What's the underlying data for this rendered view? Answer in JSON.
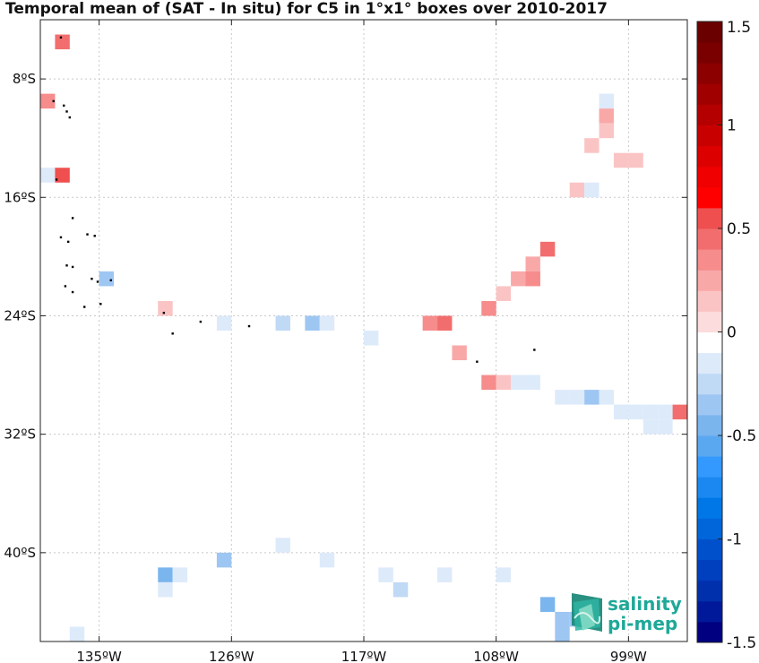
{
  "chart_data": {
    "type": "heatmap",
    "title": "Temporal mean of (SAT - In situ) for C5 in 1°x1° boxes over 2010-2017",
    "x_ticks": [
      {
        "lon": -135,
        "label": "135ºW"
      },
      {
        "lon": -126,
        "label": "126ºW"
      },
      {
        "lon": -117,
        "label": "117ºW"
      },
      {
        "lon": -108,
        "label": "108ºW"
      },
      {
        "lon": -99,
        "label": "99ºW"
      }
    ],
    "y_ticks": [
      {
        "lat": -8,
        "label": "8ºS"
      },
      {
        "lat": -16,
        "label": "16ºS"
      },
      {
        "lat": -24,
        "label": "24ºS"
      },
      {
        "lat": -32,
        "label": "32ºS"
      },
      {
        "lat": -40,
        "label": "40ºS"
      }
    ],
    "xlim": [
      -139,
      -95
    ],
    "ylim": [
      -46,
      -4
    ],
    "grid": true,
    "colorbar": {
      "range": [
        -1.5,
        1.5
      ],
      "ticks": [
        {
          "value": 1.5,
          "label": "1.5"
        },
        {
          "value": 1,
          "label": "1"
        },
        {
          "value": 0.5,
          "label": "0.5"
        },
        {
          "value": 0,
          "label": "0"
        },
        {
          "value": -0.5,
          "label": "-0.5"
        },
        {
          "value": -1,
          "label": "-1"
        },
        {
          "value": -1.5,
          "label": "-1.5"
        }
      ],
      "colors": [
        "#000080",
        "#00199a",
        "#0030ac",
        "#003fbe",
        "#0050cc",
        "#0066d9",
        "#0077e6",
        "#1a88f0",
        "#3399ff",
        "#5aa8f0",
        "#7ab5ee",
        "#9ec6f2",
        "#c0d9f5",
        "#ddeafa",
        "#ffffff",
        "#fcdcdc",
        "#fbc4c4",
        "#f9a8a8",
        "#f68c8c",
        "#f26e6e",
        "#ef4f4f",
        "#ff0000",
        "#f00000",
        "#dc0000",
        "#c80000",
        "#b40000",
        "#a00000",
        "#8c0000",
        "#7a0000",
        "#6b0000"
      ]
    },
    "cells": [
      {
        "lon": -137.5,
        "lat": -5.5,
        "value": 0.45
      },
      {
        "lon": -138.5,
        "lat": -9.5,
        "value": 0.3
      },
      {
        "lon": -100.5,
        "lat": -9.5,
        "value": -0.1
      },
      {
        "lon": -100.5,
        "lat": -10.5,
        "value": 0.2
      },
      {
        "lon": -100.5,
        "lat": -11.5,
        "value": 0.1
      },
      {
        "lon": -101.5,
        "lat": -12.5,
        "value": 0.15
      },
      {
        "lon": -99.5,
        "lat": -13.5,
        "value": 0.1
      },
      {
        "lon": -98.5,
        "lat": -13.5,
        "value": 0.1
      },
      {
        "lon": -138.5,
        "lat": -14.5,
        "value": -0.15
      },
      {
        "lon": -137.5,
        "lat": -14.5,
        "value": 0.55
      },
      {
        "lon": -102.5,
        "lat": -15.5,
        "value": 0.15
      },
      {
        "lon": -101.5,
        "lat": -15.5,
        "value": -0.1
      },
      {
        "lon": -104.5,
        "lat": -19.5,
        "value": 0.4
      },
      {
        "lon": -105.5,
        "lat": -20.5,
        "value": 0.25
      },
      {
        "lon": -106.5,
        "lat": -21.5,
        "value": 0.2
      },
      {
        "lon": -105.5,
        "lat": -21.5,
        "value": 0.3
      },
      {
        "lon": -107.5,
        "lat": -22.5,
        "value": 0.15
      },
      {
        "lon": -134.5,
        "lat": -21.5,
        "value": -0.3
      },
      {
        "lon": -108.5,
        "lat": -23.5,
        "value": 0.35
      },
      {
        "lon": -130.5,
        "lat": -23.5,
        "value": 0.15
      },
      {
        "lon": -126.5,
        "lat": -24.5,
        "value": -0.1
      },
      {
        "lon": -122.5,
        "lat": -24.5,
        "value": -0.25
      },
      {
        "lon": -120.5,
        "lat": -24.5,
        "value": -0.3
      },
      {
        "lon": -119.5,
        "lat": -24.5,
        "value": -0.1
      },
      {
        "lon": -112.5,
        "lat": -24.5,
        "value": 0.3
      },
      {
        "lon": -111.5,
        "lat": -24.5,
        "value": 0.45
      },
      {
        "lon": -116.5,
        "lat": -25.5,
        "value": -0.1
      },
      {
        "lon": -110.5,
        "lat": -26.5,
        "value": 0.2
      },
      {
        "lon": -108.5,
        "lat": -28.5,
        "value": 0.35
      },
      {
        "lon": -107.5,
        "lat": -28.5,
        "value": 0.15
      },
      {
        "lon": -106.5,
        "lat": -28.5,
        "value": -0.2
      },
      {
        "lon": -105.5,
        "lat": -28.5,
        "value": -0.2
      },
      {
        "lon": -103.5,
        "lat": -29.5,
        "value": -0.1
      },
      {
        "lon": -102.5,
        "lat": -29.5,
        "value": -0.2
      },
      {
        "lon": -101.5,
        "lat": -29.5,
        "value": -0.3
      },
      {
        "lon": -100.5,
        "lat": -29.5,
        "value": -0.15
      },
      {
        "lon": -99.5,
        "lat": -30.5,
        "value": -0.2
      },
      {
        "lon": -98.5,
        "lat": -30.5,
        "value": -0.2
      },
      {
        "lon": -97.5,
        "lat": -30.5,
        "value": -0.1
      },
      {
        "lon": -96.5,
        "lat": -30.5,
        "value": -0.2
      },
      {
        "lon": -95.5,
        "lat": -30.5,
        "value": 0.45
      },
      {
        "lon": -97.5,
        "lat": -31.5,
        "value": -0.2
      },
      {
        "lon": -96.5,
        "lat": -31.5,
        "value": -0.2
      },
      {
        "lon": -122.5,
        "lat": -39.5,
        "value": -0.1
      },
      {
        "lon": -126.5,
        "lat": -40.5,
        "value": -0.4
      },
      {
        "lon": -119.5,
        "lat": -40.5,
        "value": -0.1
      },
      {
        "lon": -130.5,
        "lat": -41.5,
        "value": -0.45
      },
      {
        "lon": -129.5,
        "lat": -41.5,
        "value": -0.2
      },
      {
        "lon": -115.5,
        "lat": -41.5,
        "value": -0.1
      },
      {
        "lon": -111.5,
        "lat": -41.5,
        "value": -0.1
      },
      {
        "lon": -107.5,
        "lat": -41.5,
        "value": -0.1
      },
      {
        "lon": -130.5,
        "lat": -42.5,
        "value": -0.1
      },
      {
        "lon": -114.5,
        "lat": -42.5,
        "value": -0.25
      },
      {
        "lon": -104.5,
        "lat": -43.5,
        "value": -0.45
      },
      {
        "lon": -103.5,
        "lat": -44.5,
        "value": -0.35
      },
      {
        "lon": -102.5,
        "lat": -44.5,
        "value": -0.3
      },
      {
        "lon": -136.5,
        "lat": -45.5,
        "value": -0.1
      },
      {
        "lon": -103.5,
        "lat": -45.5,
        "value": -0.35
      }
    ],
    "islands": [
      {
        "lon": -137.6,
        "lat": -5.2
      },
      {
        "lon": -137.4,
        "lat": -9.8
      },
      {
        "lon": -137.2,
        "lat": -10.2
      },
      {
        "lon": -137.0,
        "lat": -10.6
      },
      {
        "lon": -138.1,
        "lat": -9.5
      },
      {
        "lon": -137.9,
        "lat": -14.8
      },
      {
        "lon": -136.8,
        "lat": -17.4
      },
      {
        "lon": -137.6,
        "lat": -18.7
      },
      {
        "lon": -137.1,
        "lat": -19.0
      },
      {
        "lon": -135.8,
        "lat": -18.5
      },
      {
        "lon": -135.3,
        "lat": -18.6
      },
      {
        "lon": -137.2,
        "lat": -20.6
      },
      {
        "lon": -136.8,
        "lat": -20.7
      },
      {
        "lon": -135.5,
        "lat": -21.5
      },
      {
        "lon": -135.1,
        "lat": -21.7
      },
      {
        "lon": -137.3,
        "lat": -22.0
      },
      {
        "lon": -136.8,
        "lat": -22.4
      },
      {
        "lon": -136.0,
        "lat": -23.4
      },
      {
        "lon": -134.9,
        "lat": -23.2
      },
      {
        "lon": -130.6,
        "lat": -23.8
      },
      {
        "lon": -128.1,
        "lat": -24.4
      },
      {
        "lon": -124.8,
        "lat": -24.7
      },
      {
        "lon": -130.0,
        "lat": -25.2
      },
      {
        "lon": -109.3,
        "lat": -27.1
      },
      {
        "lon": -105.4,
        "lat": -26.3
      },
      {
        "lon": -134.2,
        "lat": -21.6
      }
    ]
  },
  "logo": {
    "line1": "salinity",
    "line2": "pi-mep"
  }
}
